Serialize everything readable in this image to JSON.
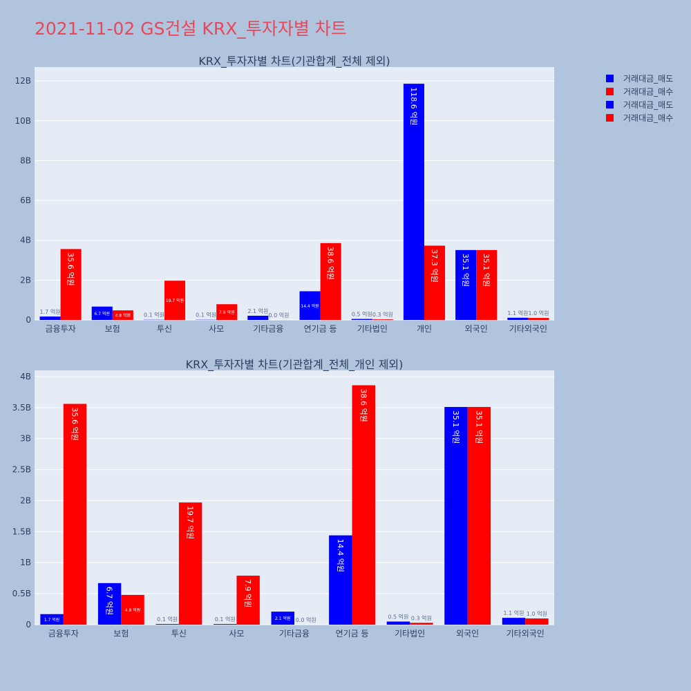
{
  "page_title": "2021-11-02 GS건설 KRX_투자자별 차트",
  "colors": {
    "background": "#b0c4de",
    "plot_bg": "#e5ecf6",
    "sell": "#0000ff",
    "buy": "#ff0000",
    "title": "#e8475a"
  },
  "legend": {
    "placement": "top-right",
    "entries": [
      {
        "name": "거래대금_매도",
        "color": "#0000ff"
      },
      {
        "name": "거래대금_매수",
        "color": "#ff0000"
      },
      {
        "name": "거래대금_매도",
        "color": "#0000ff"
      },
      {
        "name": "거래대금_매수",
        "color": "#ff0000"
      }
    ]
  },
  "chart_data": [
    {
      "type": "bar",
      "title": "KRX_투자자별 차트(기관합계_전체 제외)",
      "categories": [
        "금융투자",
        "보험",
        "투신",
        "사모",
        "기타금융",
        "연기금 등",
        "기타법인",
        "개인",
        "외국인",
        "기타외국인"
      ],
      "series": [
        {
          "name": "거래대금_매도",
          "color": "#0000ff",
          "values": [
            170000000,
            670000000,
            10000000,
            10000000,
            210000000,
            1440000000,
            50000000,
            11860000000,
            3510000000,
            110000000
          ],
          "labels": [
            "1.7 억원",
            "6.7 억원",
            "0.1 억원",
            "0.1 억원",
            "2.1 억원",
            "14.4 억원",
            "0.5 억원",
            "118.6 억원",
            "35.1 억원",
            "1.1 억원"
          ]
        },
        {
          "name": "거래대금_매수",
          "color": "#ff0000",
          "values": [
            3560000000,
            480000000,
            1970000000,
            790000000,
            0,
            3860000000,
            30000000,
            3730000000,
            3510000000,
            100000000
          ],
          "labels": [
            "35.6 억원",
            "4.8 억원",
            "19.7 억원",
            "7.9 억원",
            "0.0 억원",
            "38.6 억원",
            "0.3 억원",
            "37.3 억원",
            "35.1 억원",
            "1.0 억원"
          ]
        }
      ],
      "ylim": [
        0,
        12700000000
      ],
      "yticks": [
        0,
        2000000000,
        4000000000,
        6000000000,
        8000000000,
        10000000000,
        12000000000
      ],
      "ytick_labels": [
        "0",
        "2B",
        "4B",
        "6B",
        "8B",
        "10B",
        "12B"
      ],
      "grid": true
    },
    {
      "type": "bar",
      "title": "KRX_투자자별 차트(기관합계_전체_개인 제외)",
      "categories": [
        "금융투자",
        "보험",
        "투신",
        "사모",
        "기타금융",
        "연기금 등",
        "기타법인",
        "외국인",
        "기타외국인"
      ],
      "series": [
        {
          "name": "거래대금_매도",
          "color": "#0000ff",
          "values": [
            170000000,
            670000000,
            10000000,
            10000000,
            210000000,
            1440000000,
            50000000,
            3510000000,
            110000000
          ],
          "labels": [
            "1.7 억원",
            "6.7 억원",
            "0.1 억원",
            "0.1 억원",
            "2.1 억원",
            "14.4 억원",
            "0.5 억원",
            "35.1 억원",
            "1.1 억원"
          ]
        },
        {
          "name": "거래대금_매수",
          "color": "#ff0000",
          "values": [
            3560000000,
            480000000,
            1970000000,
            790000000,
            0,
            3860000000,
            30000000,
            3510000000,
            100000000
          ],
          "labels": [
            "35.6 억원",
            "4.8 억원",
            "19.7 억원",
            "7.9 억원",
            "0.0 억원",
            "38.6 억원",
            "0.3 억원",
            "35.1 억원",
            "1.0 억원"
          ]
        }
      ],
      "ylim": [
        0,
        4100000000
      ],
      "yticks": [
        0,
        500000000,
        1000000000,
        1500000000,
        2000000000,
        2500000000,
        3000000000,
        3500000000,
        4000000000
      ],
      "ytick_labels": [
        "0",
        "0.5B",
        "1B",
        "1.5B",
        "2B",
        "2.5B",
        "3B",
        "3.5B",
        "4B"
      ],
      "grid": true
    }
  ]
}
